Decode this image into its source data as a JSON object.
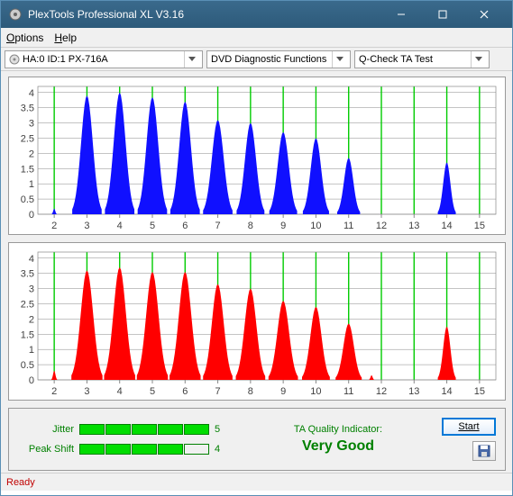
{
  "window": {
    "title": "PlexTools Professional XL V3.16"
  },
  "menubar": {
    "options": "Options",
    "help": "Help"
  },
  "toolbar": {
    "drive_label": "HA:0 ID:1   PX-716A",
    "function_label": "DVD Diagnostic Functions",
    "test_label": "Q-Check TA Test"
  },
  "charts": {
    "xlim": [
      1.5,
      15.5
    ],
    "xticks": [
      2,
      3,
      4,
      5,
      6,
      7,
      8,
      9,
      10,
      11,
      12,
      13,
      14,
      15
    ],
    "ylim": [
      0,
      4.2
    ],
    "yticks": [
      0,
      0.5,
      1,
      1.5,
      2,
      2.5,
      3,
      3.5,
      4
    ],
    "background_color": "#ffffff",
    "grid_color": "#888888",
    "vline_color": "#00cc00",
    "axis_text_color": "#404040",
    "axis_fontsize": 11,
    "top": {
      "fill_color": "#1010ff",
      "peaks": [
        {
          "x": 2.0,
          "h": 0.18,
          "w": 0.16
        },
        {
          "x": 3.0,
          "h": 3.9,
          "w": 0.9
        },
        {
          "x": 4.0,
          "h": 4.0,
          "w": 0.9
        },
        {
          "x": 5.0,
          "h": 3.85,
          "w": 0.9
        },
        {
          "x": 6.0,
          "h": 3.7,
          "w": 0.9
        },
        {
          "x": 7.0,
          "h": 3.1,
          "w": 0.9
        },
        {
          "x": 8.0,
          "h": 3.0,
          "w": 0.85
        },
        {
          "x": 9.0,
          "h": 2.7,
          "w": 0.85
        },
        {
          "x": 10.0,
          "h": 2.5,
          "w": 0.8
        },
        {
          "x": 11.0,
          "h": 1.85,
          "w": 0.7
        },
        {
          "x": 14.0,
          "h": 1.7,
          "w": 0.55
        }
      ]
    },
    "bottom": {
      "fill_color": "#ff0000",
      "peaks": [
        {
          "x": 2.0,
          "h": 0.3,
          "w": 0.18
        },
        {
          "x": 3.0,
          "h": 3.6,
          "w": 0.95
        },
        {
          "x": 4.0,
          "h": 3.7,
          "w": 0.95
        },
        {
          "x": 5.0,
          "h": 3.55,
          "w": 0.95
        },
        {
          "x": 6.0,
          "h": 3.55,
          "w": 0.95
        },
        {
          "x": 7.0,
          "h": 3.15,
          "w": 0.9
        },
        {
          "x": 8.0,
          "h": 3.0,
          "w": 0.9
        },
        {
          "x": 9.0,
          "h": 2.6,
          "w": 0.9
        },
        {
          "x": 10.0,
          "h": 2.4,
          "w": 0.85
        },
        {
          "x": 11.0,
          "h": 1.85,
          "w": 0.8
        },
        {
          "x": 11.7,
          "h": 0.15,
          "w": 0.16
        },
        {
          "x": 14.0,
          "h": 1.75,
          "w": 0.55
        }
      ]
    }
  },
  "metrics": {
    "jitter_label": "Jitter",
    "jitter_value": "5",
    "jitter_filled": 5,
    "peakshift_label": "Peak Shift",
    "peakshift_value": "4",
    "peakshift_filled": 4
  },
  "quality": {
    "label": "TA Quality Indicator:",
    "value": "Very Good"
  },
  "actions": {
    "start_label": "Start"
  },
  "statusbar": {
    "text": "Ready"
  }
}
